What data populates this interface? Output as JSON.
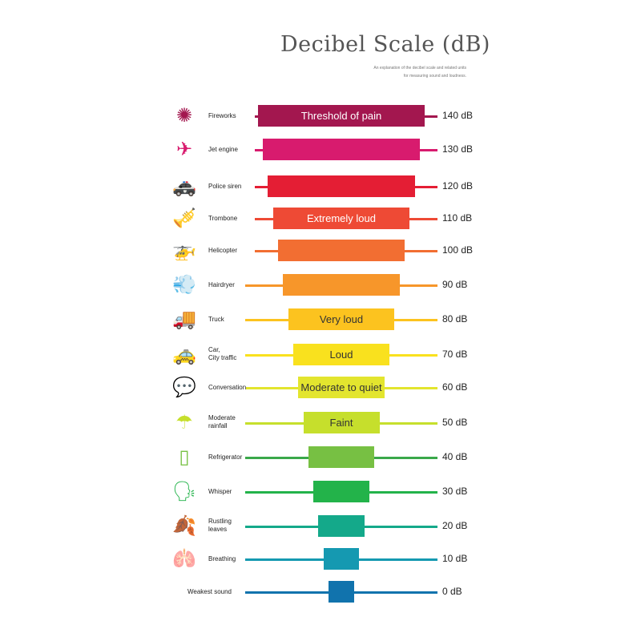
{
  "title": "Decibel Scale (dB)",
  "subtitle_lines": [
    "An explanation of the decibel scale and related units",
    "for measuring sound and loudness."
  ],
  "rows": [
    {
      "source": "Fireworks",
      "db": 140,
      "db_label": "140 dB",
      "band": "Threshold of pain",
      "color": "#a3174f",
      "band_text_color": "#ffffff",
      "icon": "fireworks-icon"
    },
    {
      "source": "Jet engine",
      "db": 130,
      "db_label": "130 dB",
      "band": "",
      "color": "#d81b6e",
      "icon": "airplane-icon"
    },
    {
      "source": "Police siren",
      "db": 120,
      "db_label": "120 dB",
      "band": "",
      "color": "#e41e34",
      "icon": "police-car-icon"
    },
    {
      "source": "Trombone",
      "db": 110,
      "db_label": "110 dB",
      "band": "Extremely loud",
      "color": "#ee4a35",
      "band_text_color": "#ffffff",
      "icon": "trombone-player-icon"
    },
    {
      "source": "Helicopter",
      "db": 100,
      "db_label": "100 dB",
      "band": "",
      "color": "#f26e32",
      "icon": "helicopter-icon"
    },
    {
      "source": "Hairdryer",
      "db": 90,
      "db_label": "90 dB",
      "band": "",
      "color": "#f7962a",
      "icon": "hairdryer-icon"
    },
    {
      "source": "Truck",
      "db": 80,
      "db_label": "80 dB",
      "band": "Very loud",
      "color": "#fcc31f",
      "band_text_color": "#333333",
      "icon": "truck-icon"
    },
    {
      "source": "Car,\nCity traffic",
      "db": 70,
      "db_label": "70 dB",
      "band": "Loud",
      "color": "#f9e11e",
      "band_text_color": "#333333",
      "icon": "car-icon"
    },
    {
      "source": "Conversation",
      "db": 60,
      "db_label": "60 dB",
      "band": "Moderate to quiet",
      "color": "#e3e52e",
      "band_text_color": "#333333",
      "icon": "conversation-icon"
    },
    {
      "source": "Moderate\nrainfall",
      "db": 50,
      "db_label": "50 dB",
      "band": "Faint",
      "color": "#c6df2c",
      "band_text_color": "#333333",
      "icon": "umbrella-icon"
    },
    {
      "source": "Refrigerator",
      "db": 40,
      "db_label": "40 dB",
      "band": "",
      "color": "#77c043",
      "line_color": "#3aa84a",
      "icon": "refrigerator-icon"
    },
    {
      "source": "Whisper",
      "db": 30,
      "db_label": "30 dB",
      "band": "",
      "color": "#23b34a",
      "icon": "whisper-icon"
    },
    {
      "source": "Rustling\nleaves",
      "db": 20,
      "db_label": "20 dB",
      "band": "",
      "color": "#14a98a",
      "icon": "leaves-icon"
    },
    {
      "source": "Breathing",
      "db": 10,
      "db_label": "10 dB",
      "band": "",
      "color": "#1599b1",
      "icon": "lungs-icon"
    },
    {
      "source": "Weakest sound",
      "db": 0,
      "db_label": "0 dB",
      "band": "",
      "color": "#1173ad",
      "icon": ""
    }
  ]
}
